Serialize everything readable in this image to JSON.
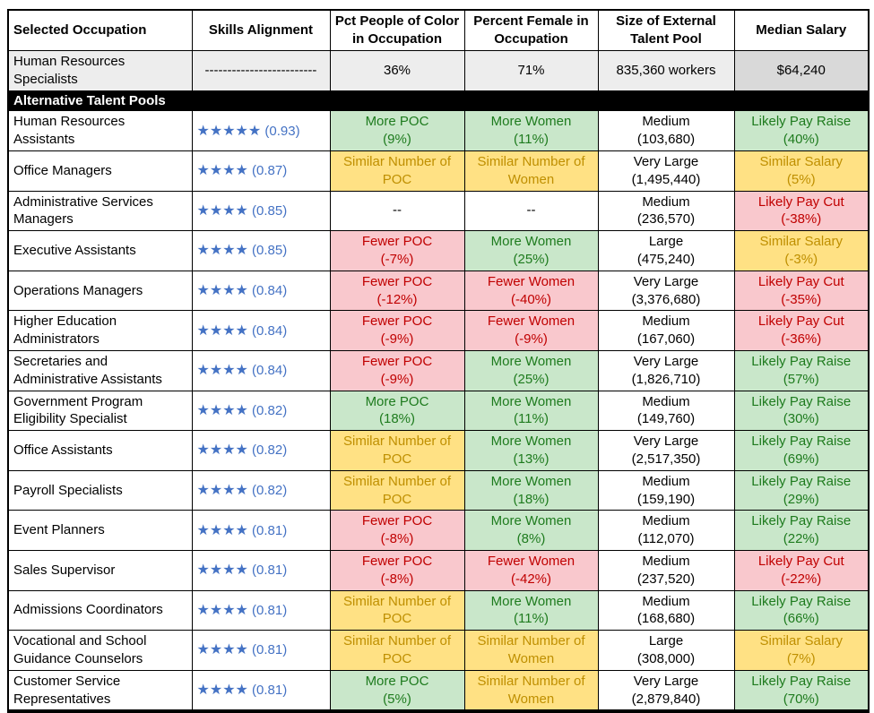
{
  "colors": {
    "green_bg": "#C9E7CA",
    "green_text": "#1E7B1E",
    "yellow_bg": "#FFE184",
    "yellow_text": "#BF8F00",
    "red_bg": "#F9C8CD",
    "red_text": "#C00000",
    "blue": "#4472C4",
    "gray_light": "#EDEDED",
    "gray_dark": "#D9D9D9",
    "bar_bg": "#000000",
    "bar_text": "#FFFFFF"
  },
  "header": {
    "columns": [
      {
        "id": "selected-occupation",
        "line1": "Selected Occupation",
        "line2": ""
      },
      {
        "id": "skills-alignment",
        "line1": "Skills Alignment",
        "line2": ""
      },
      {
        "id": "pct-poc",
        "line1": "Pct People of Color",
        "line2": "in Occupation"
      },
      {
        "id": "pct-female",
        "line1": "Percent Female in",
        "line2": "Occupation"
      },
      {
        "id": "talent-pool-size",
        "line1": "Size of External",
        "line2": "Talent Pool"
      },
      {
        "id": "median-salary",
        "line1": "Median Salary",
        "line2": ""
      }
    ]
  },
  "selected_row": {
    "occupation": "Human Resources Specialists",
    "skills_alignment": "-------------------------",
    "pct_poc": "36%",
    "pct_female": "71%",
    "talent_pool": "835,360 workers",
    "median_salary": "$64,240"
  },
  "section_header": "Alternative Talent Pools",
  "rows": [
    {
      "occupation": "Human Resources Assistants",
      "stars": "★★★★★",
      "score": "(0.93)",
      "poc": {
        "line1": "More POC",
        "line2": "(9%)",
        "status": "good"
      },
      "female": {
        "line1": "More Women",
        "line2": "(11%)",
        "status": "good"
      },
      "pool": {
        "line1": "Medium",
        "line2": "(103,680)"
      },
      "salary": {
        "line1": "Likely Pay Raise",
        "line2": "(40%)",
        "status": "good"
      }
    },
    {
      "occupation": "Office Managers",
      "stars": "★★★★",
      "score": "(0.87)",
      "poc": {
        "line1": "Similar Number of",
        "line2": "POC",
        "status": "similar"
      },
      "female": {
        "line1": "Similar Number of",
        "line2": "Women",
        "status": "similar"
      },
      "pool": {
        "line1": "Very Large",
        "line2": "(1,495,440)"
      },
      "salary": {
        "line1": "Similar Salary",
        "line2": "(5%)",
        "status": "similar"
      }
    },
    {
      "occupation": "Administrative Services Managers",
      "stars": "★★★★",
      "score": "(0.85)",
      "poc": {
        "line1": "--",
        "line2": "",
        "status": "none"
      },
      "female": {
        "line1": "--",
        "line2": "",
        "status": "none"
      },
      "pool": {
        "line1": "Medium",
        "line2": "(236,570)"
      },
      "salary": {
        "line1": "Likely Pay Cut",
        "line2": "(-38%)",
        "status": "bad"
      }
    },
    {
      "occupation": "Executive Assistants",
      "stars": "★★★★",
      "score": "(0.85)",
      "poc": {
        "line1": "Fewer POC",
        "line2": "(-7%)",
        "status": "bad"
      },
      "female": {
        "line1": "More Women",
        "line2": "(25%)",
        "status": "good"
      },
      "pool": {
        "line1": "Large",
        "line2": "(475,240)"
      },
      "salary": {
        "line1": "Similar Salary",
        "line2": "(-3%)",
        "status": "similar"
      }
    },
    {
      "occupation": "Operations Managers",
      "stars": "★★★★",
      "score": "(0.84)",
      "poc": {
        "line1": "Fewer POC",
        "line2": "(-12%)",
        "status": "bad"
      },
      "female": {
        "line1": "Fewer Women",
        "line2": "(-40%)",
        "status": "bad"
      },
      "pool": {
        "line1": "Very Large",
        "line2": "(3,376,680)"
      },
      "salary": {
        "line1": "Likely Pay Cut",
        "line2": "(-35%)",
        "status": "bad"
      }
    },
    {
      "occupation": "Higher Education Administrators",
      "stars": "★★★★",
      "score": "(0.84)",
      "poc": {
        "line1": "Fewer POC",
        "line2": "(-9%)",
        "status": "bad"
      },
      "female": {
        "line1": "Fewer Women",
        "line2": "(-9%)",
        "status": "bad"
      },
      "pool": {
        "line1": "Medium",
        "line2": "(167,060)"
      },
      "salary": {
        "line1": "Likely Pay Cut",
        "line2": "(-36%)",
        "status": "bad"
      }
    },
    {
      "occupation": "Secretaries and Administrative Assistants",
      "stars": "★★★★",
      "score": "(0.84)",
      "poc": {
        "line1": "Fewer POC",
        "line2": "(-9%)",
        "status": "bad"
      },
      "female": {
        "line1": "More Women",
        "line2": "(25%)",
        "status": "good"
      },
      "pool": {
        "line1": "Very Large",
        "line2": "(1,826,710)"
      },
      "salary": {
        "line1": "Likely Pay Raise",
        "line2": "(57%)",
        "status": "good"
      }
    },
    {
      "occupation": "Government Program Eligibility Specialist",
      "stars": "★★★★",
      "score": "(0.82)",
      "poc": {
        "line1": "More POC",
        "line2": "(18%)",
        "status": "good"
      },
      "female": {
        "line1": "More Women",
        "line2": "(11%)",
        "status": "good"
      },
      "pool": {
        "line1": "Medium",
        "line2": "(149,760)"
      },
      "salary": {
        "line1": "Likely Pay Raise",
        "line2": "(30%)",
        "status": "good"
      }
    },
    {
      "occupation": "Office Assistants",
      "stars": "★★★★",
      "score": "(0.82)",
      "poc": {
        "line1": "Similar Number of",
        "line2": "POC",
        "status": "similar"
      },
      "female": {
        "line1": "More Women",
        "line2": "(13%)",
        "status": "good"
      },
      "pool": {
        "line1": "Very Large",
        "line2": "(2,517,350)"
      },
      "salary": {
        "line1": "Likely Pay Raise",
        "line2": "(69%)",
        "status": "good"
      }
    },
    {
      "occupation": "Payroll Specialists",
      "stars": "★★★★",
      "score": "(0.82)",
      "poc": {
        "line1": "Similar Number of",
        "line2": "POC",
        "status": "similar"
      },
      "female": {
        "line1": "More Women",
        "line2": "(18%)",
        "status": "good"
      },
      "pool": {
        "line1": "Medium",
        "line2": "(159,190)"
      },
      "salary": {
        "line1": "Likely Pay Raise",
        "line2": "(29%)",
        "status": "good"
      }
    },
    {
      "occupation": "Event Planners",
      "stars": "★★★★",
      "score": "(0.81)",
      "poc": {
        "line1": "Fewer POC",
        "line2": "(-8%)",
        "status": "bad"
      },
      "female": {
        "line1": "More Women",
        "line2": "(8%)",
        "status": "good"
      },
      "pool": {
        "line1": "Medium",
        "line2": "(112,070)"
      },
      "salary": {
        "line1": "Likely Pay Raise",
        "line2": "(22%)",
        "status": "good"
      }
    },
    {
      "occupation": "Sales Supervisor",
      "stars": "★★★★",
      "score": "(0.81)",
      "poc": {
        "line1": "Fewer POC",
        "line2": "(-8%)",
        "status": "bad"
      },
      "female": {
        "line1": "Fewer Women",
        "line2": "(-42%)",
        "status": "bad"
      },
      "pool": {
        "line1": "Medium",
        "line2": "(237,520)"
      },
      "salary": {
        "line1": "Likely Pay Cut",
        "line2": "(-22%)",
        "status": "bad"
      }
    },
    {
      "occupation": "Admissions Coordinators",
      "stars": "★★★★",
      "score": "(0.81)",
      "poc": {
        "line1": "Similar Number of",
        "line2": "POC",
        "status": "similar"
      },
      "female": {
        "line1": "More Women",
        "line2": "(11%)",
        "status": "good"
      },
      "pool": {
        "line1": "Medium",
        "line2": "(168,680)"
      },
      "salary": {
        "line1": "Likely Pay Raise",
        "line2": "(66%)",
        "status": "good"
      }
    },
    {
      "occupation": "Vocational and School Guidance Counselors",
      "stars": "★★★★",
      "score": "(0.81)",
      "poc": {
        "line1": "Similar Number of",
        "line2": "POC",
        "status": "similar"
      },
      "female": {
        "line1": "Similar Number of",
        "line2": "Women",
        "status": "similar"
      },
      "pool": {
        "line1": "Large",
        "line2": "(308,000)"
      },
      "salary": {
        "line1": "Similar Salary",
        "line2": "(7%)",
        "status": "similar"
      }
    },
    {
      "occupation": "Customer Service Representatives",
      "stars": "★★★★",
      "score": "(0.81)",
      "poc": {
        "line1": "More POC",
        "line2": "(5%)",
        "status": "good"
      },
      "female": {
        "line1": "Similar Number of",
        "line2": "Women",
        "status": "similar"
      },
      "pool": {
        "line1": "Very Large",
        "line2": "(2,879,840)"
      },
      "salary": {
        "line1": "Likely Pay Raise",
        "line2": "(70%)",
        "status": "good"
      }
    }
  ]
}
